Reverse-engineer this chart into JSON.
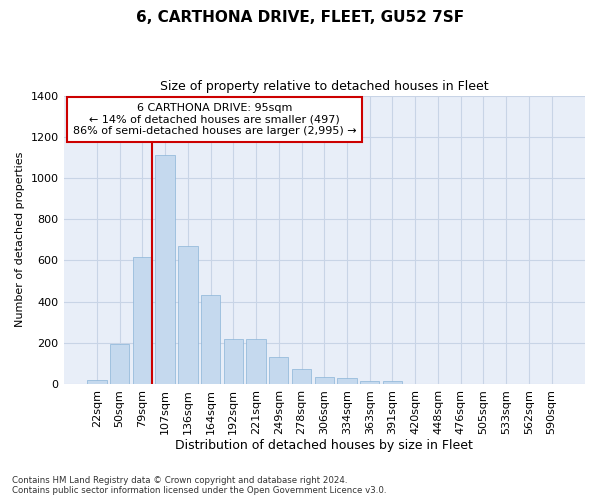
{
  "title": "6, CARTHONA DRIVE, FLEET, GU52 7SF",
  "subtitle": "Size of property relative to detached houses in Fleet",
  "xlabel": "Distribution of detached houses by size in Fleet",
  "ylabel": "Number of detached properties",
  "categories": [
    "22sqm",
    "50sqm",
    "79sqm",
    "107sqm",
    "136sqm",
    "164sqm",
    "192sqm",
    "221sqm",
    "249sqm",
    "278sqm",
    "306sqm",
    "334sqm",
    "363sqm",
    "391sqm",
    "420sqm",
    "448sqm",
    "476sqm",
    "505sqm",
    "533sqm",
    "562sqm",
    "590sqm"
  ],
  "values": [
    20,
    195,
    615,
    1110,
    670,
    430,
    220,
    220,
    130,
    75,
    35,
    30,
    15,
    15,
    0,
    0,
    0,
    0,
    0,
    0,
    0
  ],
  "bar_color": "#c5d9ee",
  "bar_edge_color": "#8ab4d8",
  "background_color": "#e8eef8",
  "vline_color": "#cc0000",
  "annotation_text": "6 CARTHONA DRIVE: 95sqm\n← 14% of detached houses are smaller (497)\n86% of semi-detached houses are larger (2,995) →",
  "annotation_box_facecolor": "#ffffff",
  "annotation_box_edgecolor": "#cc0000",
  "ylim_max": 1400,
  "yticks": [
    0,
    200,
    400,
    600,
    800,
    1000,
    1200,
    1400
  ],
  "grid_color": "#c8d4e6",
  "vline_xindex": 2,
  "bar_width": 0.85,
  "title_fontsize": 11,
  "subtitle_fontsize": 9,
  "ylabel_fontsize": 8,
  "xlabel_fontsize": 9,
  "tick_fontsize": 8,
  "annot_fontsize": 8,
  "footer1": "Contains HM Land Registry data © Crown copyright and database right 2024.",
  "footer2": "Contains public sector information licensed under the Open Government Licence v3.0."
}
